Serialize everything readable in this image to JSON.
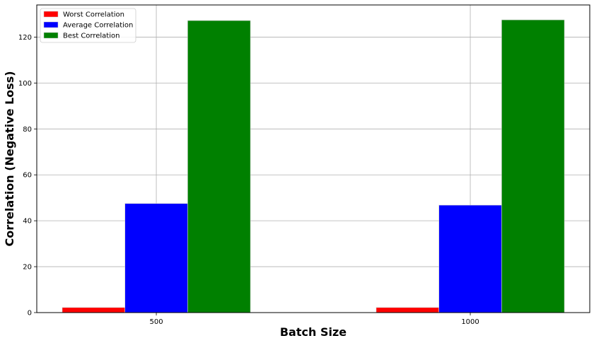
{
  "chart_data": {
    "type": "bar",
    "categories": [
      "500",
      "1000"
    ],
    "series": [
      {
        "name": "Worst Correlation",
        "values": [
          2.2,
          2.2
        ],
        "color": "#ff0000"
      },
      {
        "name": "Average Correlation",
        "values": [
          47.5,
          46.8
        ],
        "color": "#0000ff"
      },
      {
        "name": "Best Correlation",
        "values": [
          127.2,
          127.5
        ],
        "color": "#008000"
      }
    ],
    "xlabel": "Batch Size",
    "ylabel": "Correlation (Negative Loss)",
    "ylim": [
      0,
      134
    ],
    "yticks": [
      0,
      20,
      40,
      60,
      80,
      100,
      120
    ],
    "grid": true,
    "legend_position": "upper-left"
  }
}
